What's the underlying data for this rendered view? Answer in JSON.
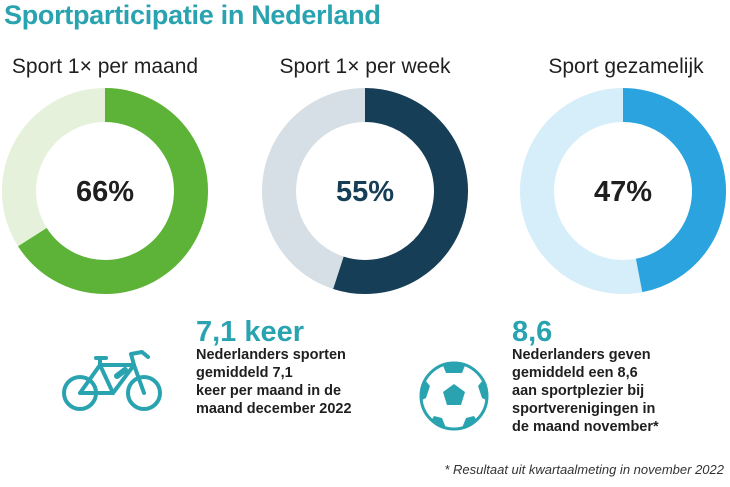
{
  "title": "Sportparticipatie in Nederland",
  "chart_data": {
    "type": "pie",
    "donuts": [
      {
        "label": "Sport 1× per maand",
        "value": 66,
        "display": "66%",
        "color": "#5db337",
        "track_color": "#e5f1da",
        "text_color": "#1f1f1f"
      },
      {
        "label": "Sport 1× per week",
        "value": 55,
        "display": "55%",
        "color": "#163e57",
        "track_color": "#d6dfe5",
        "text_color": "#163e57"
      },
      {
        "label": "Sport gezamelijk",
        "value": 47,
        "display": "47%",
        "color": "#2ba3de",
        "track_color": "#d6eef9",
        "text_color": "#1f1f1f"
      }
    ]
  },
  "stats": [
    {
      "value": "7,1 keer",
      "icon": "bicycle-icon",
      "lines": [
        "Nederlanders sporten",
        "gemiddeld 7,1",
        "keer per maand in de",
        "maand december 2022"
      ]
    },
    {
      "value": "8,6",
      "icon": "soccer-ball-icon",
      "lines": [
        "Nederlanders geven",
        "gemiddeld een 8,6",
        "aan sportplezier bij",
        "sportverenigingen in",
        "de maand november*"
      ]
    }
  ],
  "footnote": "* Resultaat uit kwartaalmeting in november 2022",
  "colors": {
    "accent": "#2aa3b0",
    "text": "#1f1f1f"
  }
}
